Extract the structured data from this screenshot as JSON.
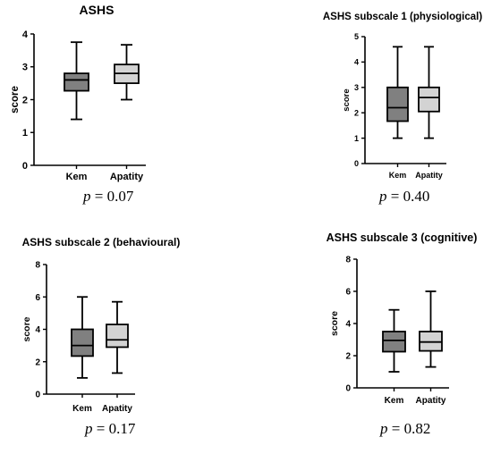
{
  "chart_data": [
    {
      "type": "box",
      "title": "ASHS",
      "ylabel": "score",
      "ylim": [
        0,
        4
      ],
      "yticks": [
        0,
        1,
        2,
        3,
        4
      ],
      "categories": [
        "Kem",
        "Apatity"
      ],
      "boxes": [
        {
          "min": 1.4,
          "q1": 2.27,
          "median": 2.6,
          "q3": 2.8,
          "max": 3.75,
          "color": "#808080"
        },
        {
          "min": 2.0,
          "q1": 2.5,
          "median": 2.8,
          "q3": 3.07,
          "max": 3.67,
          "color": "#d3d3d3"
        }
      ],
      "p_label": "p",
      "p_value": "= 0.07"
    },
    {
      "type": "box",
      "title": "ASHS subscale 1 (physiological)",
      "ylabel": "score",
      "ylim": [
        0,
        5
      ],
      "yticks": [
        0,
        1,
        2,
        3,
        4,
        5
      ],
      "categories": [
        "Kem",
        "Apatity"
      ],
      "boxes": [
        {
          "min": 1.0,
          "q1": 1.67,
          "median": 2.2,
          "q3": 3.0,
          "max": 4.6,
          "color": "#808080"
        },
        {
          "min": 1.0,
          "q1": 2.05,
          "median": 2.6,
          "q3": 3.0,
          "max": 4.6,
          "color": "#d3d3d3"
        }
      ],
      "p_label": "p",
      "p_value": "= 0.40"
    },
    {
      "type": "box",
      "title": "ASHS subscale 2 (behavioural)",
      "ylabel": "score",
      "ylim": [
        0,
        8
      ],
      "yticks": [
        0,
        2,
        4,
        6,
        8
      ],
      "categories": [
        "Kem",
        "Apatity"
      ],
      "boxes": [
        {
          "min": 1.0,
          "q1": 2.35,
          "median": 3.0,
          "q3": 4.0,
          "max": 6.0,
          "color": "#808080"
        },
        {
          "min": 1.3,
          "q1": 2.9,
          "median": 3.35,
          "q3": 4.3,
          "max": 5.7,
          "color": "#d3d3d3"
        }
      ],
      "p_label": "p",
      "p_value": "= 0.17"
    },
    {
      "type": "box",
      "title": "ASHS subscale 3 (cognitive)",
      "ylabel": "score",
      "ylim": [
        0,
        8
      ],
      "yticks": [
        0,
        2,
        4,
        6,
        8
      ],
      "categories": [
        "Kem",
        "Apatity"
      ],
      "boxes": [
        {
          "min": 1.0,
          "q1": 2.25,
          "median": 2.95,
          "q3": 3.5,
          "max": 4.85,
          "color": "#808080"
        },
        {
          "min": 1.3,
          "q1": 2.3,
          "median": 2.85,
          "q3": 3.5,
          "max": 6.0,
          "color": "#d3d3d3"
        }
      ],
      "p_label": "p",
      "p_value": "= 0.82"
    }
  ]
}
